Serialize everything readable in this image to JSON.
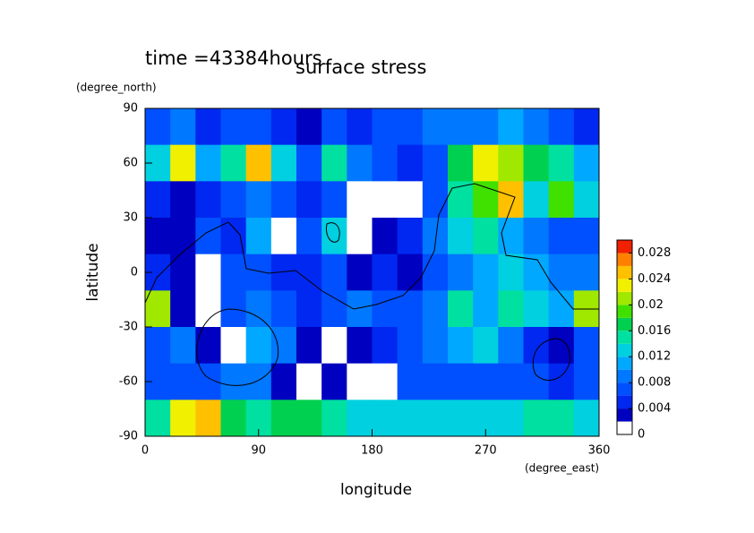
{
  "chart_data": {
    "type": "contourf",
    "title": "surface stress",
    "subtitle": "time =43384hours",
    "x_label": "longitude",
    "x_unit": "(degree_east)",
    "y_label": "latitude",
    "y_unit": "(degree_north)",
    "x": [
      10,
      30,
      50,
      70,
      90,
      110,
      130,
      150,
      170,
      190,
      210,
      230,
      250,
      270,
      290,
      310,
      330,
      350
    ],
    "y": [
      80,
      60,
      40,
      20,
      0,
      -20,
      -40,
      -60,
      -80
    ],
    "z": [
      [
        0.006,
        0.008,
        0.004,
        0.006,
        0.006,
        0.004,
        0.003,
        0.006,
        0.004,
        0.006,
        0.006,
        0.008,
        0.008,
        0.008,
        0.01,
        0.008,
        0.006,
        0.004
      ],
      [
        0.012,
        0.022,
        0.01,
        0.014,
        0.024,
        0.012,
        0.006,
        0.014,
        0.008,
        0.006,
        0.004,
        0.006,
        0.016,
        0.022,
        0.02,
        0.016,
        0.014,
        0.01
      ],
      [
        0.004,
        0.002,
        0.004,
        0.006,
        0.008,
        0.006,
        0.004,
        0.006,
        0.001,
        0.001,
        0.001,
        0.006,
        0.014,
        0.018,
        0.024,
        0.012,
        0.018,
        0.012
      ],
      [
        0.003,
        0.002,
        0.006,
        0.004,
        0.01,
        0.001,
        0.006,
        0.012,
        0.001,
        0.002,
        0.004,
        0.008,
        0.012,
        0.014,
        0.01,
        0.008,
        0.006,
        0.006
      ],
      [
        0.004,
        0.002,
        0.001,
        0.006,
        0.006,
        0.004,
        0.004,
        0.006,
        0.003,
        0.004,
        0.002,
        0.006,
        0.008,
        0.01,
        0.012,
        0.01,
        0.008,
        0.008
      ],
      [
        0.02,
        0.002,
        0.001,
        0.006,
        0.008,
        0.006,
        0.004,
        0.006,
        0.008,
        0.006,
        0.006,
        0.008,
        0.014,
        0.01,
        0.014,
        0.012,
        0.01,
        0.02
      ],
      [
        0.006,
        0.008,
        0.002,
        0.001,
        0.01,
        0.008,
        0.002,
        0.001,
        0.002,
        0.004,
        0.006,
        0.008,
        0.01,
        0.012,
        0.008,
        0.004,
        0.002,
        0.006
      ],
      [
        0.006,
        0.006,
        0.006,
        0.008,
        0.008,
        0.002,
        0.001,
        0.002,
        0.001,
        0.001,
        0.006,
        0.006,
        0.006,
        0.006,
        0.006,
        0.006,
        0.004,
        0.006
      ],
      [
        0.014,
        0.022,
        0.024,
        0.016,
        0.014,
        0.016,
        0.016,
        0.014,
        0.012,
        0.012,
        0.012,
        0.012,
        0.012,
        0.012,
        0.012,
        0.014,
        0.014,
        0.012
      ]
    ],
    "levels": [
      0,
      0.002,
      0.004,
      0.006,
      0.008,
      0.01,
      0.012,
      0.014,
      0.016,
      0.018,
      0.02,
      0.022,
      0.024,
      0.026,
      0.028,
      0.03
    ],
    "colors": [
      "#ffffff",
      "#0000c0",
      "#0028f0",
      "#0050ff",
      "#0078ff",
      "#00a8ff",
      "#00d0e0",
      "#00e0a0",
      "#00d050",
      "#40e000",
      "#a0e800",
      "#f0f000",
      "#ffc000",
      "#ff8000",
      "#f02000"
    ],
    "xlim": [
      0,
      360
    ],
    "xticks": [
      0,
      90,
      180,
      270,
      360
    ],
    "ylim": [
      -90,
      90
    ],
    "yticks": [
      90,
      60,
      30,
      0,
      -30,
      -60,
      -90
    ],
    "clim": [
      0,
      0.03
    ],
    "cticks": [
      0,
      0.004,
      0.008,
      0.012,
      0.016,
      0.02,
      0.024,
      0.028
    ]
  }
}
